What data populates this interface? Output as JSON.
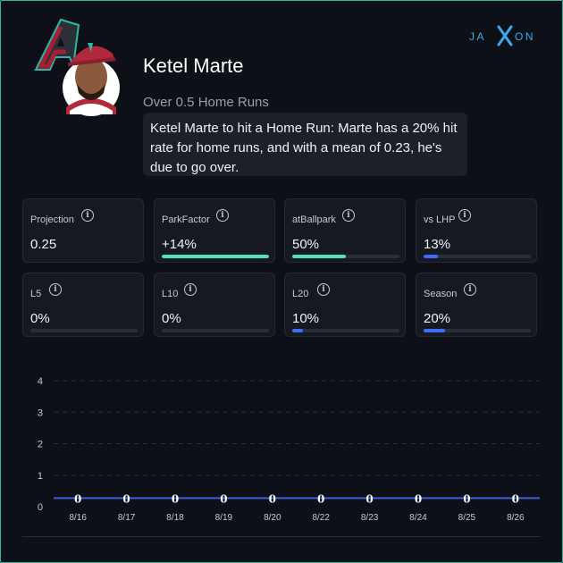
{
  "brand": {
    "name": "JAXON"
  },
  "player": {
    "name": "Ketel Marte",
    "prop_line": "Over 0.5 Home Runs",
    "analysis": "Ketel Marte to hit a Home Run: Marte has a 20% hit rate for home runs, and with a mean of 0.23, he's due to go over.",
    "team_logo_icon": "arizona-a-logo-icon"
  },
  "colors": {
    "teal": "#4fe3bd",
    "blue": "#3d6ef5",
    "card_bg": "#171922",
    "page_bg": "#0e1018"
  },
  "stats_row1": [
    {
      "label": "Projection",
      "value": "0.25",
      "bar": null
    },
    {
      "label": "ParkFactor",
      "value": "+14%",
      "bar": 1.0,
      "color": "#4fe3bd"
    },
    {
      "label": "atBallpark",
      "value": "50%",
      "bar": 0.5,
      "color": "#4fe3bd"
    },
    {
      "label": "vs LHP",
      "value": "13%",
      "bar": 0.13,
      "color": "#3d6ef5"
    }
  ],
  "stats_row2": [
    {
      "label": "L5",
      "value": "0%",
      "bar": 0.0,
      "color": "#3d6ef5"
    },
    {
      "label": "L10",
      "value": "0%",
      "bar": 0.0,
      "color": "#3d6ef5"
    },
    {
      "label": "L20",
      "value": "10%",
      "bar": 0.1,
      "color": "#3d6ef5"
    },
    {
      "label": "Season",
      "value": "20%",
      "bar": 0.2,
      "color": "#3d6ef5"
    }
  ],
  "chart_data": {
    "type": "bar",
    "categories": [
      "8/16",
      "8/17",
      "8/18",
      "8/19",
      "8/20",
      "8/22",
      "8/23",
      "8/24",
      "8/25",
      "8/26"
    ],
    "values": [
      0,
      0,
      0,
      0,
      0,
      0,
      0,
      0,
      0,
      0
    ],
    "threshold": 0.5,
    "ylim": [
      0,
      4
    ],
    "yticks": [
      "0",
      "1",
      "2",
      "3",
      "4"
    ],
    "grid": true,
    "title": "",
    "xlabel": "",
    "ylabel": ""
  }
}
